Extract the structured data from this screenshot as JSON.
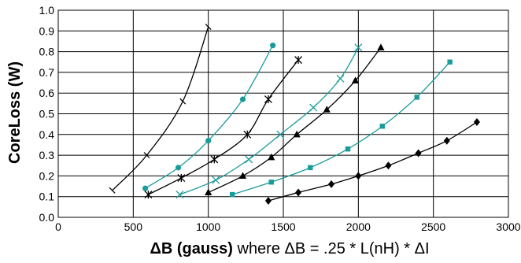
{
  "chart_data": {
    "type": "scatter",
    "xlabel": {
      "bold": "ΔB (gauss)",
      "rest": " where ΔB = .25 * L(nH) * ΔI"
    },
    "ylabel": "CoreLoss (W)",
    "xlim": [
      0,
      3000
    ],
    "ylim": [
      0.0,
      1.0
    ],
    "xticks": [
      0,
      500,
      1000,
      1500,
      2000,
      2500,
      3000
    ],
    "yticks": [
      "0.0",
      "0.1",
      "0.2",
      "0.3",
      "0.4",
      "0.5",
      "0.6",
      "0.7",
      "0.8",
      "0.9",
      "1.0"
    ],
    "grid": true,
    "legend": "none",
    "series": [
      {
        "marker": "vline",
        "color": "#000000",
        "x": [
          360,
          590,
          830,
          1000
        ],
        "y": [
          0.13,
          0.3,
          0.56,
          0.92
        ]
      },
      {
        "marker": "circle",
        "color": "#1a9b9b",
        "x": [
          580,
          800,
          1000,
          1230,
          1430
        ],
        "y": [
          0.14,
          0.24,
          0.37,
          0.57,
          0.83
        ]
      },
      {
        "marker": "star",
        "color": "#000000",
        "x": [
          600,
          820,
          1040,
          1260,
          1400,
          1600
        ],
        "y": [
          0.11,
          0.19,
          0.28,
          0.4,
          0.57,
          0.76
        ]
      },
      {
        "marker": "x",
        "color": "#1a9b9b",
        "x": [
          810,
          1050,
          1270,
          1480,
          1700,
          1880,
          2000
        ],
        "y": [
          0.11,
          0.18,
          0.28,
          0.4,
          0.53,
          0.67,
          0.82
        ]
      },
      {
        "marker": "triangle",
        "color": "#000000",
        "x": [
          1000,
          1230,
          1420,
          1590,
          1790,
          1980,
          2150
        ],
        "y": [
          0.12,
          0.2,
          0.29,
          0.4,
          0.52,
          0.66,
          0.82
        ]
      },
      {
        "marker": "square",
        "color": "#1a9b9b",
        "x": [
          1160,
          1420,
          1680,
          1930,
          2160,
          2390,
          2610
        ],
        "y": [
          0.11,
          0.17,
          0.24,
          0.33,
          0.44,
          0.58,
          0.75
        ]
      },
      {
        "marker": "diamond",
        "color": "#000000",
        "x": [
          1400,
          1600,
          1820,
          2000,
          2200,
          2400,
          2590,
          2790
        ],
        "y": [
          0.08,
          0.12,
          0.16,
          0.2,
          0.25,
          0.31,
          0.37,
          0.46
        ]
      }
    ]
  }
}
